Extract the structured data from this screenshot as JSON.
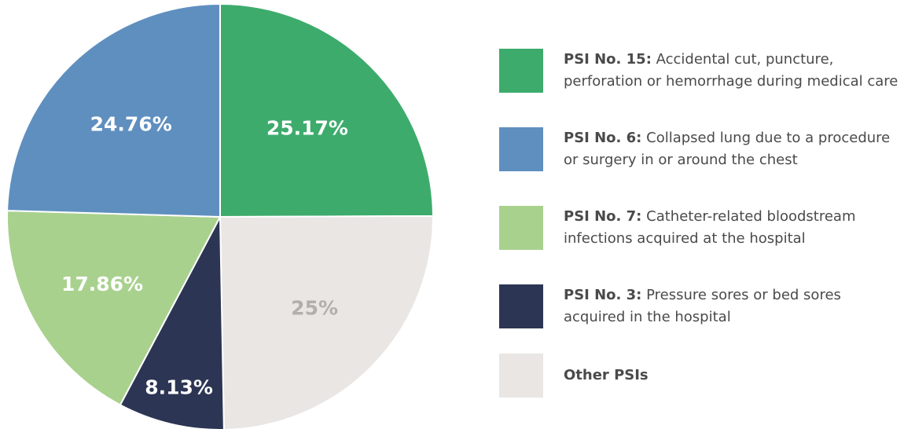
{
  "chart_data": {
    "type": "pie",
    "categories": [
      {
        "name": "PSI No. 15:",
        "description": "Accidental cut, puncture, perforation or hemorrhage during medical care"
      },
      {
        "name": "Other PSIs"
      },
      {
        "name": "PSI No. 3:",
        "description": "Pressure sores or bed sores acquired in the hospital"
      },
      {
        "name": "PSI No. 7:",
        "description": "Catheter-related bloodstream infections acquired at the hospital"
      },
      {
        "name": "PSI No. 6:",
        "description": "Collapsed lung due to a procedure or surgery in or around the chest"
      }
    ],
    "values": [
      25.17,
      25,
      8.13,
      17.86,
      24.76
    ],
    "value_labels": [
      "25.17%",
      "25%",
      "8.13%",
      "17.86%",
      "24.76%"
    ],
    "colors": [
      "#3dab6c",
      "#e9e6e3",
      "#2c3553",
      "#a9d18e",
      "#5f8fbf"
    ],
    "label_colors": [
      "#ffffff",
      "#b3aeab",
      "#ffffff",
      "#ffffff",
      "#ffffff"
    ]
  }
}
